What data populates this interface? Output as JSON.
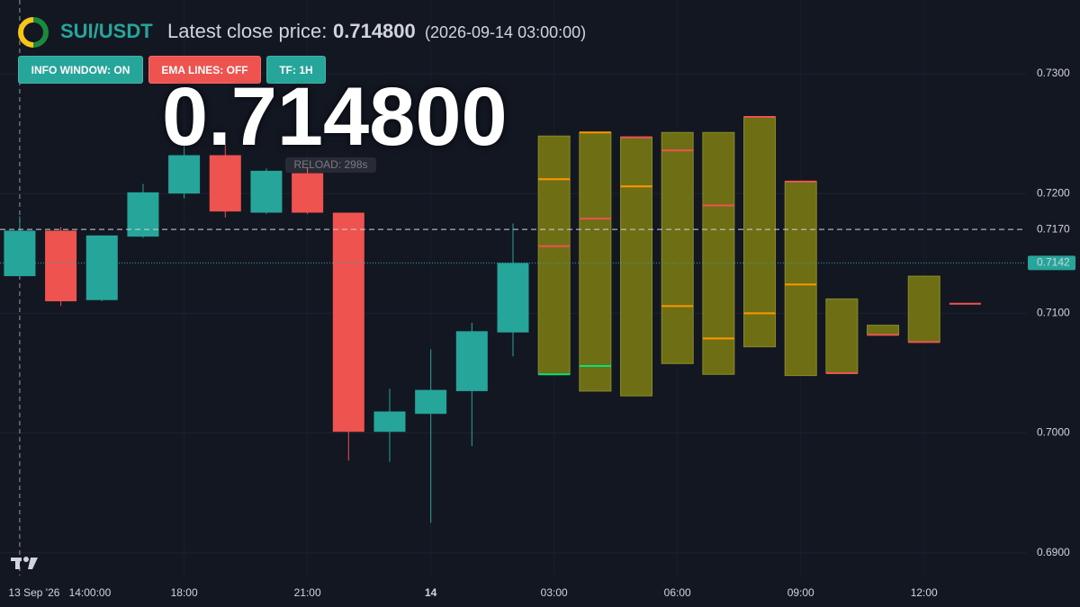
{
  "header": {
    "symbol": "SUI/USDT",
    "price_label": "Latest close price:",
    "price": "0.714800",
    "timestamp": "(2026-09-14 03:00:00)"
  },
  "buttons": [
    {
      "label": "INFO WINDOW: ON",
      "color": "#26a69a"
    },
    {
      "label": "EMA LINES: OFF",
      "color": "#ef5350"
    },
    {
      "label": "TF: 1H",
      "color": "#26a69a"
    }
  ],
  "reload": "RELOAD: 298s",
  "chart_data": {
    "type": "candlestick",
    "up_color": "#26a69a",
    "down_color": "#ef5350",
    "xlim": [
      13.52,
      38.48
    ],
    "ylim": [
      0.6881,
      0.73616
    ],
    "xticks": [
      {
        "value": 18,
        "label": "18:00"
      },
      {
        "value": 21,
        "label": "21:00"
      },
      {
        "value": 24,
        "label": "14",
        "bold": true
      },
      {
        "value": 27,
        "label": "03:00"
      },
      {
        "value": 30,
        "label": "06:00"
      },
      {
        "value": 33,
        "label": "09:00"
      },
      {
        "value": 36,
        "label": "12:00"
      }
    ],
    "yticks": [
      {
        "value": 0.69,
        "label": "0.6900"
      },
      {
        "value": 0.7,
        "label": "0.7000"
      },
      {
        "value": 0.71,
        "label": "0.7100"
      },
      {
        "value": 0.72,
        "label": "0.7200"
      },
      {
        "value": 0.73,
        "label": "0.7300"
      }
    ],
    "grid": true,
    "crosshair": {
      "x": 14,
      "date_label": "13 Sep '26",
      "time_label": "14:00:00"
    },
    "price_lines": [
      {
        "value": 0.717,
        "label": "0.7170",
        "style": "dashed",
        "color": "#cfd3dc"
      },
      {
        "value": 0.7142,
        "label": "0.7142",
        "style": "dotted",
        "color": "#26a69a"
      }
    ],
    "candles": {
      "x": [
        14,
        15,
        16,
        17,
        18,
        19,
        20,
        21,
        22,
        23,
        24,
        25,
        26
      ],
      "open": [
        0.7131,
        0.7169,
        0.7111,
        0.7164,
        0.72,
        0.7232,
        0.7184,
        0.7217,
        0.7184,
        0.7001,
        0.7016,
        0.7035,
        0.7084
      ],
      "high": [
        0.7181,
        0.7172,
        0.7165,
        0.7208,
        0.7241,
        0.7241,
        0.7221,
        0.7222,
        0.7184,
        0.7037,
        0.707,
        0.7092,
        0.7175
      ],
      "low": [
        0.7131,
        0.7106,
        0.711,
        0.7163,
        0.7196,
        0.718,
        0.7183,
        0.7183,
        0.6977,
        0.6976,
        0.6925,
        0.6989,
        0.7064
      ],
      "close": [
        0.7169,
        0.711,
        0.7165,
        0.7201,
        0.7232,
        0.7185,
        0.7219,
        0.7184,
        0.7001,
        0.7018,
        0.7036,
        0.7085,
        0.7142
      ]
    },
    "box_color": "#6e6f15",
    "forecast": [
      {
        "x": 27,
        "high": 0.7248,
        "low": 0.7049,
        "levels": [
          {
            "value": 0.7212,
            "color": "#ff9800"
          },
          {
            "value": 0.7156,
            "color": "#ef5350"
          },
          {
            "value": 0.7049,
            "color": "#00e676"
          }
        ]
      },
      {
        "x": 28,
        "high": 0.7251,
        "low": 0.7035,
        "levels": [
          {
            "value": 0.7251,
            "color": "#ff9800"
          },
          {
            "value": 0.7179,
            "color": "#ef5350"
          },
          {
            "value": 0.7056,
            "color": "#00e676"
          }
        ]
      },
      {
        "x": 29,
        "high": 0.7247,
        "low": 0.7031,
        "levels": [
          {
            "value": 0.7247,
            "color": "#ef5350"
          },
          {
            "value": 0.7206,
            "color": "#ff9800"
          }
        ]
      },
      {
        "x": 30,
        "high": 0.7251,
        "low": 0.7058,
        "levels": [
          {
            "value": 0.7236,
            "color": "#ef5350"
          },
          {
            "value": 0.7106,
            "color": "#ff9800"
          }
        ]
      },
      {
        "x": 31,
        "high": 0.7251,
        "low": 0.7049,
        "levels": [
          {
            "value": 0.719,
            "color": "#ef5350"
          },
          {
            "value": 0.7079,
            "color": "#ff9800"
          }
        ]
      },
      {
        "x": 32,
        "high": 0.7264,
        "low": 0.7072,
        "levels": [
          {
            "value": 0.7264,
            "color": "#ef5350"
          },
          {
            "value": 0.71,
            "color": "#ff9800"
          }
        ]
      },
      {
        "x": 33,
        "high": 0.721,
        "low": 0.7048,
        "levels": [
          {
            "value": 0.721,
            "color": "#ef5350"
          },
          {
            "value": 0.7124,
            "color": "#ff9800"
          }
        ]
      },
      {
        "x": 34,
        "high": 0.7112,
        "low": 0.705,
        "levels": [
          {
            "value": 0.705,
            "color": "#ef5350"
          }
        ]
      },
      {
        "x": 35,
        "high": 0.709,
        "low": 0.7082,
        "levels": [
          {
            "value": 0.7082,
            "color": "#ef5350"
          }
        ]
      },
      {
        "x": 36,
        "high": 0.7131,
        "low": 0.7076,
        "levels": [
          {
            "value": 0.7076,
            "color": "#ef5350"
          }
        ]
      },
      {
        "x": 37,
        "levels": [
          {
            "value": 0.7108,
            "color": "#ef5350"
          }
        ]
      }
    ]
  }
}
